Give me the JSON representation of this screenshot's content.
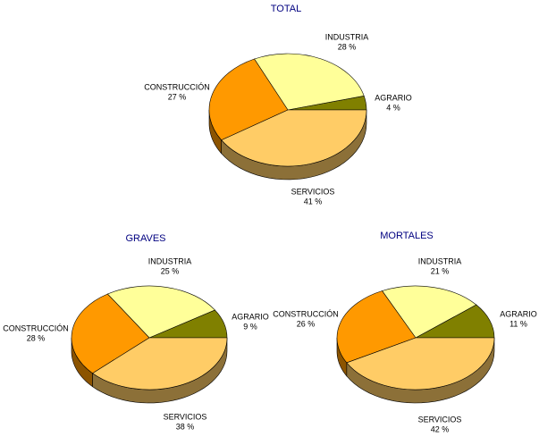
{
  "chart_data": [
    {
      "type": "pie",
      "title": "TOTAL",
      "categories": [
        "AGRARIO",
        "INDUSTRIA",
        "CONSTRUCCIÓN",
        "SERVICIOS"
      ],
      "values": [
        4,
        28,
        27,
        41
      ],
      "value_labels": [
        "4 %",
        "28 %",
        "27 %",
        "41 %"
      ],
      "colors": [
        "#808000",
        "#ffff99",
        "#ff9900",
        "#ffcc66"
      ]
    },
    {
      "type": "pie",
      "title": "GRAVES",
      "categories": [
        "AGRARIO",
        "INDUSTRIA",
        "CONSTRUCCIÓN",
        "SERVICIOS"
      ],
      "values": [
        9,
        25,
        28,
        38
      ],
      "value_labels": [
        "9 %",
        "25 %",
        "28 %",
        "38 %"
      ],
      "colors": [
        "#808000",
        "#ffff99",
        "#ff9900",
        "#ffcc66"
      ]
    },
    {
      "type": "pie",
      "title": "MORTALES",
      "categories": [
        "AGRARIO",
        "INDUSTRIA",
        "CONSTRUCCIÓN",
        "SERVICIOS"
      ],
      "values": [
        11,
        21,
        26,
        42
      ],
      "value_labels": [
        "11 %",
        "21 %",
        "26 %",
        "42 %"
      ],
      "colors": [
        "#808000",
        "#ffff99",
        "#ff9900",
        "#ffcc66"
      ]
    }
  ]
}
